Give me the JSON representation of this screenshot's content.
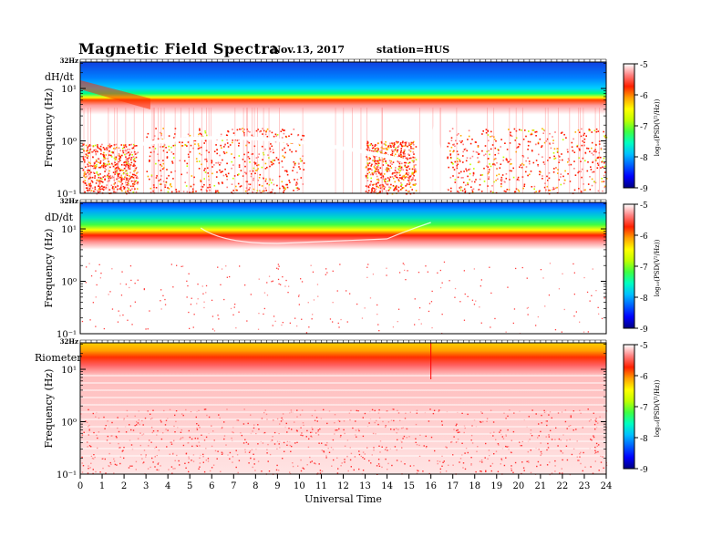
{
  "header": {
    "title": "Magnetic  Field  Spectra",
    "date": "Nov.13, 2017",
    "station": "station=HUS"
  },
  "chart_data": [
    {
      "type": "heatmap",
      "panel_label": "dH/dt",
      "ylabel": "Frequency  (Hz)",
      "top_tick": "32Hz",
      "y_ticks": [
        "10⁻¹",
        "10⁰",
        "10¹"
      ],
      "colorbar_label": "log₁₀(PSD(V²/Hz))",
      "colorbar_ticks": [
        "-5",
        "-6",
        "-7",
        "-8",
        "-9"
      ],
      "zlim": [
        -9,
        -5
      ]
    },
    {
      "type": "heatmap",
      "panel_label": "dD/dt",
      "ylabel": "Frequency  (Hz)",
      "top_tick": "32Hz",
      "y_ticks": [
        "10⁻¹",
        "10⁰",
        "10¹"
      ],
      "colorbar_label": "log₁₀(PSD(V²/Hz))",
      "colorbar_ticks": [
        "-5",
        "-6",
        "-7",
        "-8",
        "-9"
      ],
      "zlim": [
        -9,
        -5
      ]
    },
    {
      "type": "heatmap",
      "panel_label": "Riometer",
      "ylabel": "Frequency  (Hz)",
      "top_tick": "32Hz",
      "y_ticks": [
        "10⁻¹",
        "10⁰",
        "10¹"
      ],
      "colorbar_label": "log₁₀(PSD(V²/Hz))",
      "colorbar_ticks": [
        "-5",
        "-6",
        "-7",
        "-8",
        "-9"
      ],
      "zlim": [
        -9,
        -5
      ]
    }
  ],
  "x_axis": {
    "xlabel": "Universal Time",
    "ticks": [
      "0",
      "1",
      "2",
      "3",
      "4",
      "5",
      "6",
      "7",
      "8",
      "9",
      "10",
      "11",
      "12",
      "13",
      "14",
      "15",
      "16",
      "17",
      "18",
      "19",
      "20",
      "21",
      "22",
      "23",
      "24"
    ],
    "xlim": [
      0,
      24
    ]
  },
  "colors": {
    "colormap": [
      "#000080",
      "#0000ff",
      "#0080ff",
      "#00ffff",
      "#00ff80",
      "#80ff00",
      "#ffff00",
      "#ff8000",
      "#ff0000",
      "#ff9090",
      "#ffffff"
    ]
  }
}
